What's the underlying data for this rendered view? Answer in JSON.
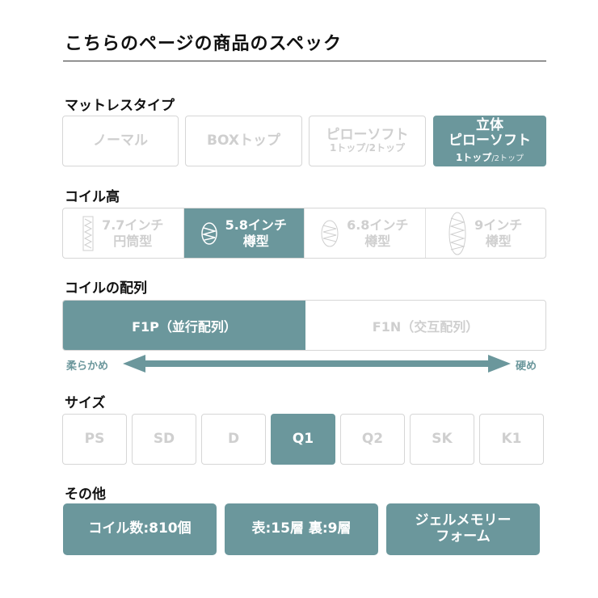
{
  "title": "こちらのページの商品のスペック",
  "accent": "#6b979c",
  "mattress": {
    "label": "マットレスタイプ",
    "options": [
      {
        "label": "ノーマル",
        "selected": false
      },
      {
        "label": "BOXトップ",
        "selected": false
      },
      {
        "label": "ピローソフト",
        "sub": "1トップ/2トップ",
        "selected": false
      },
      {
        "label_top": "立体",
        "label": "ピローソフト",
        "sub_a": "1トップ",
        "sub_b": "/2トップ",
        "selected": true
      }
    ]
  },
  "coil_height": {
    "label": "コイル高",
    "options": [
      {
        "label": "7.7インチ",
        "sub": "円筒型",
        "icon": "cylinder-coil-icon",
        "selected": false
      },
      {
        "label": "5.8インチ",
        "sub": "樽型",
        "icon": "barrel-coil-icon",
        "selected": true
      },
      {
        "label": "6.8インチ",
        "sub": "樽型",
        "icon": "barrel-coil-icon",
        "selected": false
      },
      {
        "label": "9インチ",
        "sub": "樽型",
        "icon": "barrel-coil-icon",
        "selected": false
      }
    ]
  },
  "coil_array": {
    "label": "コイルの配列",
    "options": [
      {
        "label": "F1P（並行配列）",
        "selected": true
      },
      {
        "label": "F1N（交互配列）",
        "selected": false
      }
    ],
    "soft": "柔らかめ",
    "hard": "硬め"
  },
  "size": {
    "label": "サイズ",
    "options": [
      "PS",
      "SD",
      "D",
      "Q1",
      "Q2",
      "SK",
      "K1"
    ],
    "selected": "Q1"
  },
  "other": {
    "label": "その他",
    "items": [
      "コイル数:810個",
      "表:15層 裏:9層",
      "ジェルメモリー",
      "フォーム"
    ]
  }
}
